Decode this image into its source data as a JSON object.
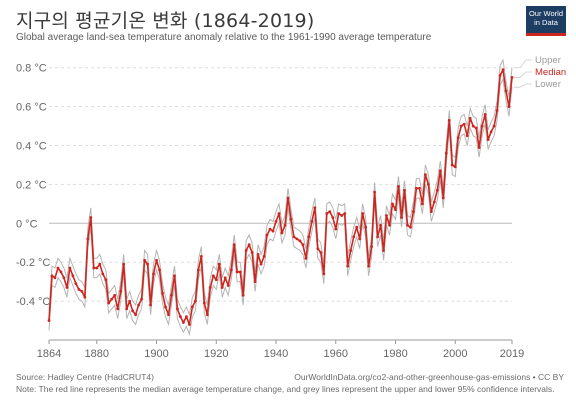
{
  "header": {
    "title": "지구의 평균기온 변화 (1864-2019)",
    "subtitle": "Global average land-sea temperature anomaly relative to the 1961-1990 average temperature"
  },
  "logo": {
    "line1": "Our World",
    "line2": "in Data"
  },
  "footer": {
    "source": "Source: Hadley Centre (HadCRUT4)",
    "url": "OurWorldInData.org/co2-and-other-greenhouse-gas-emissions • CC BY",
    "note": "Note: The red line represents the median average temperature change, and grey lines represent the upper and lower 95% confidence intervals."
  },
  "colors": {
    "median": "#ce261e",
    "bounds": "#b4b4b4",
    "grid": "#dddddd",
    "zero_line": "#bbbbbb"
  },
  "chart_data": {
    "type": "line",
    "title": "지구의 평균기온 변화 (1864-2019)",
    "xlim": [
      1864,
      2019
    ],
    "ylim": [
      -0.6,
      0.85
    ],
    "x_ticks": [
      1864,
      1880,
      1900,
      1920,
      1940,
      1960,
      1980,
      2000,
      2019
    ],
    "y_ticks": [
      {
        "value": -0.4,
        "label": "-0.4 °C"
      },
      {
        "value": -0.2,
        "label": "-0.2 °C"
      },
      {
        "value": 0,
        "label": "0 °C"
      },
      {
        "value": 0.2,
        "label": "0.2 °C"
      },
      {
        "value": 0.4,
        "label": "0.4 °C"
      },
      {
        "value": 0.6,
        "label": "0.6 °C"
      },
      {
        "value": 0.8,
        "label": "0.8 °C"
      }
    ],
    "grid": true,
    "legend_position": "right-end",
    "ci_half_width": 0.05,
    "series": [
      {
        "name": "Upper",
        "role": "upper"
      },
      {
        "name": "Median",
        "role": "median"
      },
      {
        "name": "Lower",
        "role": "lower"
      }
    ],
    "x": [
      1864,
      1865,
      1866,
      1867,
      1868,
      1869,
      1870,
      1871,
      1872,
      1873,
      1874,
      1875,
      1876,
      1877,
      1878,
      1879,
      1880,
      1881,
      1882,
      1883,
      1884,
      1885,
      1886,
      1887,
      1888,
      1889,
      1890,
      1891,
      1892,
      1893,
      1894,
      1895,
      1896,
      1897,
      1898,
      1899,
      1900,
      1901,
      1902,
      1903,
      1904,
      1905,
      1906,
      1907,
      1908,
      1909,
      1910,
      1911,
      1912,
      1913,
      1914,
      1915,
      1916,
      1917,
      1918,
      1919,
      1920,
      1921,
      1922,
      1923,
      1924,
      1925,
      1926,
      1927,
      1928,
      1929,
      1930,
      1931,
      1932,
      1933,
      1934,
      1935,
      1936,
      1937,
      1938,
      1939,
      1940,
      1941,
      1942,
      1943,
      1944,
      1945,
      1946,
      1947,
      1948,
      1949,
      1950,
      1951,
      1952,
      1953,
      1954,
      1955,
      1956,
      1957,
      1958,
      1959,
      1960,
      1961,
      1962,
      1963,
      1964,
      1965,
      1966,
      1967,
      1968,
      1969,
      1970,
      1971,
      1972,
      1973,
      1974,
      1975,
      1976,
      1977,
      1978,
      1979,
      1980,
      1981,
      1982,
      1983,
      1984,
      1985,
      1986,
      1987,
      1988,
      1989,
      1990,
      1991,
      1992,
      1993,
      1994,
      1995,
      1996,
      1997,
      1998,
      1999,
      2000,
      2001,
      2002,
      2003,
      2004,
      2005,
      2006,
      2007,
      2008,
      2009,
      2010,
      2011,
      2012,
      2013,
      2014,
      2015,
      2016,
      2017,
      2018,
      2019
    ],
    "median": [
      -0.5,
      -0.27,
      -0.28,
      -0.23,
      -0.25,
      -0.28,
      -0.33,
      -0.23,
      -0.27,
      -0.31,
      -0.34,
      -0.35,
      -0.38,
      -0.08,
      0.03,
      -0.23,
      -0.23,
      -0.21,
      -0.26,
      -0.29,
      -0.41,
      -0.39,
      -0.37,
      -0.44,
      -0.35,
      -0.21,
      -0.44,
      -0.4,
      -0.45,
      -0.47,
      -0.42,
      -0.39,
      -0.19,
      -0.21,
      -0.42,
      -0.26,
      -0.19,
      -0.24,
      -0.36,
      -0.43,
      -0.47,
      -0.37,
      -0.27,
      -0.44,
      -0.48,
      -0.51,
      -0.48,
      -0.52,
      -0.43,
      -0.4,
      -0.24,
      -0.17,
      -0.41,
      -0.47,
      -0.33,
      -0.27,
      -0.29,
      -0.21,
      -0.33,
      -0.28,
      -0.32,
      -0.24,
      -0.11,
      -0.25,
      -0.25,
      -0.37,
      -0.14,
      -0.11,
      -0.15,
      -0.3,
      -0.16,
      -0.21,
      -0.17,
      -0.06,
      -0.03,
      -0.04,
      0.01,
      0.05,
      -0.05,
      -0.01,
      0.13,
      0.02,
      -0.07,
      -0.08,
      -0.09,
      -0.11,
      -0.18,
      -0.07,
      0.01,
      0.08,
      -0.13,
      -0.15,
      -0.26,
      0.05,
      0.06,
      0.03,
      -0.03,
      0.05,
      0.04,
      0.05,
      -0.22,
      -0.14,
      -0.07,
      -0.02,
      -0.08,
      0.05,
      -0.02,
      -0.22,
      -0.12,
      0.16,
      -0.07,
      -0.01,
      -0.14,
      0.04,
      -0.01,
      0.1,
      0.07,
      0.19,
      0.03,
      0.17,
      -0.01,
      -0.02,
      0.06,
      0.18,
      0.18,
      0.1,
      0.25,
      0.2,
      0.06,
      0.11,
      0.17,
      0.27,
      0.13,
      0.36,
      0.53,
      0.3,
      0.29,
      0.44,
      0.5,
      0.51,
      0.45,
      0.54,
      0.5,
      0.49,
      0.39,
      0.5,
      0.56,
      0.43,
      0.47,
      0.5,
      0.58,
      0.76,
      0.79,
      0.68,
      0.6,
      0.75
    ]
  }
}
